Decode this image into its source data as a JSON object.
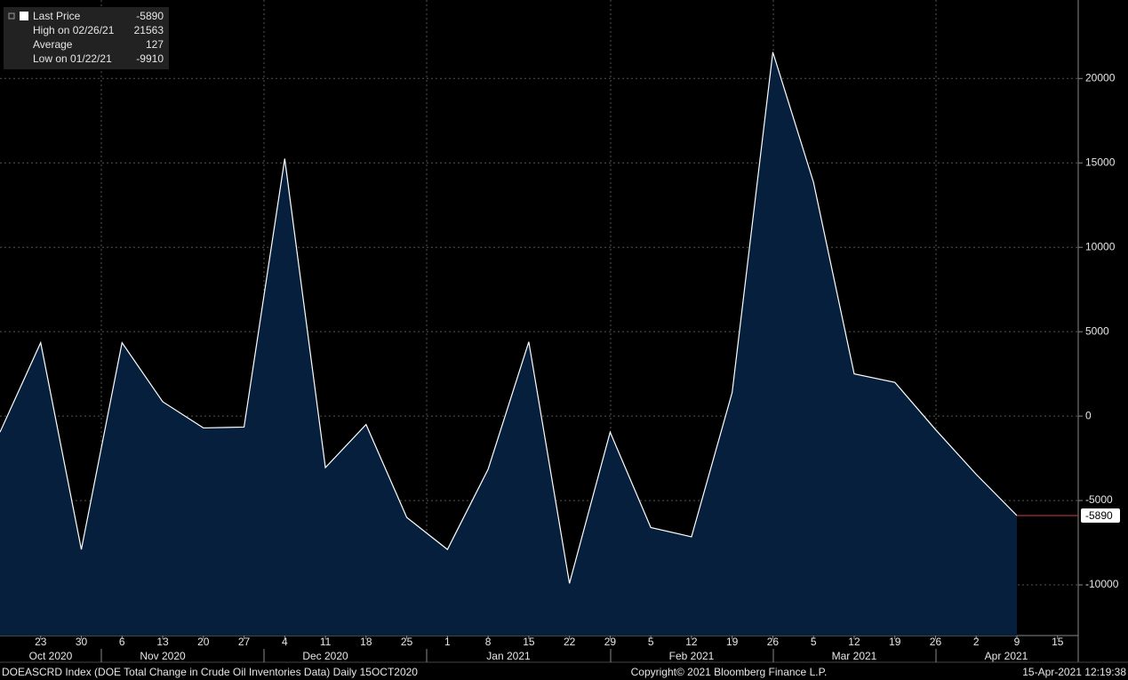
{
  "chart_data": {
    "type": "area",
    "categories": [
      null,
      "23",
      "30",
      "6",
      "13",
      "20",
      "27",
      "4",
      "11",
      "18",
      "25",
      "1",
      "8",
      "15",
      "22",
      "29",
      "5",
      "12",
      "19",
      "26",
      "5",
      "12",
      "19",
      "26",
      "2",
      "9",
      "15"
    ],
    "months": [
      "Oct 2020",
      "Nov 2020",
      "Dec 2020",
      "Jan 2021",
      "Feb 2021",
      "Mar 2021",
      "Apr 2021"
    ],
    "series": [
      {
        "name": "Last Price",
        "color": "#ffffff",
        "fill": "#061f3d",
        "values": [
          -950,
          4350,
          -7900,
          4350,
          850,
          -700,
          -650,
          15250,
          -3050,
          -500,
          -6000,
          -7900,
          -3150,
          4400,
          -9910,
          -950,
          -6600,
          -7150,
          1400,
          21563,
          13850,
          2500,
          2000,
          -800,
          -3450,
          -5890,
          null
        ]
      }
    ],
    "legend": [
      {
        "label": "Last Price",
        "value": -5890
      },
      {
        "label": "High on 02/26/21",
        "value": 21563
      },
      {
        "label": "Average",
        "value": 127
      },
      {
        "label": "Low on 01/22/21",
        "value": -9910
      }
    ],
    "ylim": [
      -13000,
      24650
    ],
    "yticks": [
      -10000,
      -5000,
      0,
      5000,
      10000,
      15000,
      20000
    ],
    "grid": true,
    "footer": {
      "left": "DOEASCRD Index (DOE Total Change in Crude Oil Inventories Data)  Daily 15OCT2020",
      "center": "Copyright© 2021 Bloomberg Finance L.P.",
      "right": "15-Apr-2021 12:19:38"
    }
  }
}
